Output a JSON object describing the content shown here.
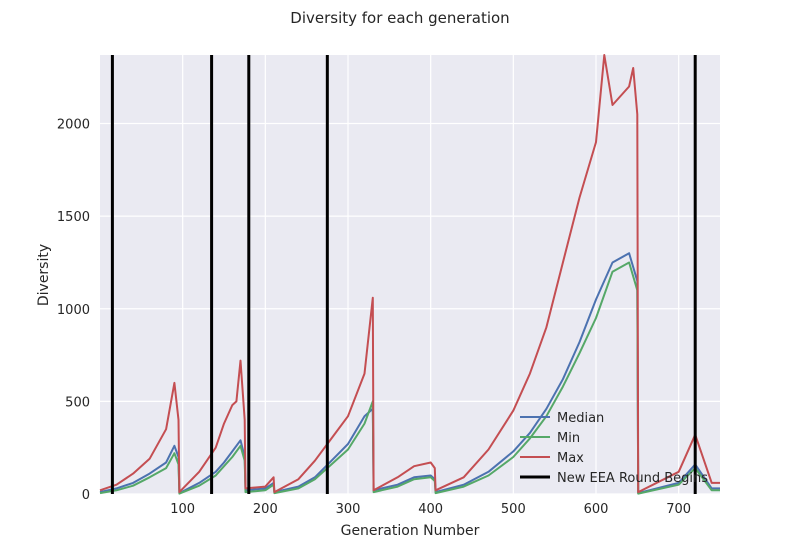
{
  "chart_data": {
    "type": "line",
    "title": "Diversity for each generation",
    "xlabel": "Generation Number",
    "ylabel": "Diversity",
    "xlim": [
      0,
      750
    ],
    "ylim": [
      0,
      2370
    ],
    "x_ticks": [
      100,
      200,
      300,
      400,
      500,
      600,
      700
    ],
    "y_ticks": [
      0,
      500,
      1000,
      1500,
      2000
    ],
    "grid": true,
    "legend": {
      "placement": "lower-right"
    },
    "colors": {
      "background": "#eaeaf2",
      "grid": "#ffffff",
      "median": "#4c72b0",
      "min": "#55a868",
      "max": "#c44e52",
      "round": "#000000"
    },
    "series": [
      {
        "name": "Median",
        "x": [
          0,
          20,
          40,
          60,
          80,
          90,
          95,
          96,
          120,
          140,
          150,
          160,
          170,
          175,
          176,
          200,
          210,
          211,
          240,
          260,
          280,
          300,
          320,
          330,
          331,
          360,
          380,
          400,
          405,
          406,
          440,
          470,
          500,
          520,
          540,
          560,
          580,
          600,
          620,
          640,
          650,
          651,
          700,
          720,
          740,
          750
        ],
        "y": [
          10,
          30,
          60,
          110,
          170,
          260,
          200,
          5,
          60,
          120,
          170,
          230,
          290,
          200,
          20,
          30,
          60,
          10,
          40,
          90,
          180,
          270,
          420,
          460,
          20,
          50,
          90,
          100,
          80,
          10,
          50,
          120,
          230,
          330,
          460,
          620,
          820,
          1050,
          1250,
          1300,
          1150,
          5,
          60,
          160,
          30,
          30
        ]
      },
      {
        "name": "Min",
        "x": [
          0,
          20,
          40,
          60,
          80,
          90,
          95,
          96,
          120,
          140,
          150,
          160,
          170,
          175,
          176,
          200,
          210,
          211,
          240,
          260,
          280,
          300,
          320,
          330,
          331,
          360,
          380,
          400,
          405,
          406,
          440,
          470,
          500,
          520,
          540,
          560,
          580,
          600,
          620,
          640,
          650,
          651,
          700,
          720,
          740,
          750
        ],
        "y": [
          5,
          20,
          45,
          90,
          140,
          220,
          160,
          2,
          45,
          100,
          150,
          200,
          260,
          180,
          10,
          20,
          50,
          5,
          30,
          80,
          160,
          240,
          380,
          500,
          10,
          40,
          80,
          90,
          70,
          5,
          40,
          100,
          200,
          300,
          420,
          580,
          760,
          950,
          1200,
          1250,
          1100,
          2,
          50,
          140,
          20,
          20
        ]
      },
      {
        "name": "Max",
        "x": [
          0,
          20,
          40,
          60,
          80,
          90,
          95,
          96,
          120,
          140,
          150,
          160,
          165,
          170,
          175,
          176,
          200,
          210,
          211,
          240,
          260,
          280,
          300,
          320,
          330,
          331,
          360,
          380,
          400,
          405,
          406,
          440,
          470,
          500,
          520,
          540,
          560,
          580,
          600,
          610,
          620,
          640,
          645,
          650,
          651,
          700,
          720,
          740,
          750
        ],
        "y": [
          20,
          50,
          110,
          190,
          350,
          600,
          400,
          10,
          120,
          250,
          380,
          480,
          500,
          720,
          400,
          30,
          40,
          90,
          10,
          80,
          180,
          300,
          420,
          650,
          1060,
          20,
          90,
          150,
          170,
          140,
          20,
          90,
          240,
          450,
          650,
          900,
          1250,
          1600,
          1900,
          2370,
          2100,
          2200,
          2300,
          2050,
          10,
          120,
          320,
          60,
          60
        ]
      }
    ],
    "round_lines": {
      "name": "New EEA Round Begins",
      "x": [
        15,
        135,
        180,
        275,
        720
      ]
    },
    "legend_entries": [
      "Median",
      "Min",
      "Max",
      "New EEA Round Begins"
    ]
  }
}
